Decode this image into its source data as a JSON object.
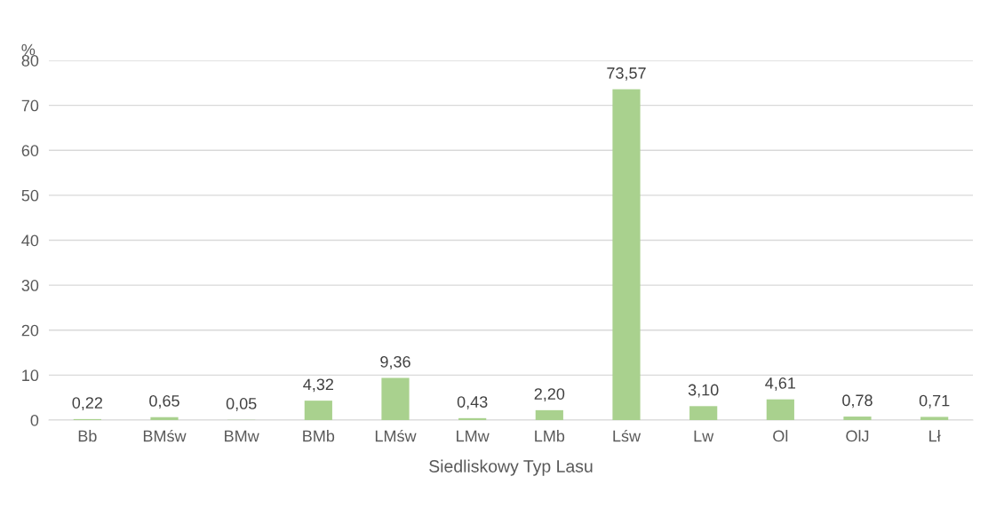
{
  "chart_data": {
    "type": "bar",
    "ylabel": "%",
    "xlabel": "Siedliskowy Typ Lasu",
    "categories": [
      "Bb",
      "BMśw",
      "BMw",
      "BMb",
      "LMśw",
      "LMw",
      "LMb",
      "Lśw",
      "Lw",
      "Ol",
      "OlJ",
      "Lł"
    ],
    "values": [
      0.22,
      0.65,
      0.05,
      4.32,
      9.36,
      0.43,
      2.2,
      73.57,
      3.1,
      4.61,
      0.78,
      0.71
    ],
    "value_labels": [
      "0,22",
      "0,65",
      "0,05",
      "4,32",
      "9,36",
      "0,43",
      "2,20",
      "73,57",
      "3,10",
      "4,61",
      "0,78",
      "0,71"
    ],
    "color": "#a9d18e",
    "ylim": [
      0,
      80
    ],
    "yticks": [
      0,
      10,
      20,
      30,
      40,
      50,
      60,
      70,
      80
    ],
    "grid": "y"
  }
}
